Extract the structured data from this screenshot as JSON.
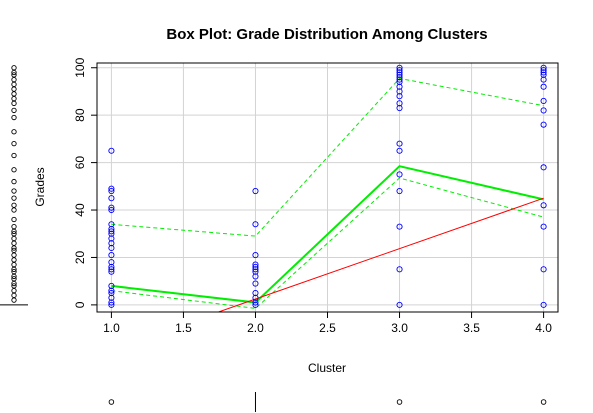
{
  "chart_data": {
    "type": "scatter",
    "title": "Box Plot: Grade Distribution Among Clusters",
    "xlabel": "Cluster",
    "ylabel": "Grades",
    "xlim": [
      0.9,
      4.1
    ],
    "ylim": [
      -3,
      102
    ],
    "x_ticks": [
      "1.0",
      "1.5",
      "2.0",
      "2.5",
      "3.0",
      "3.5",
      "4.0"
    ],
    "y_ticks": [
      "0",
      "20",
      "40",
      "60",
      "80",
      "100"
    ],
    "grid": true,
    "points": [
      {
        "x": 1,
        "ys": [
          65,
          49,
          48,
          45,
          41,
          40,
          34,
          32,
          31,
          30,
          28,
          26,
          24,
          21,
          18,
          16,
          15,
          14,
          8,
          6,
          5,
          3,
          1,
          0
        ]
      },
      {
        "x": 2,
        "ys": [
          48,
          34,
          21,
          17,
          16,
          15,
          14,
          12,
          9,
          5,
          3,
          1,
          0
        ]
      },
      {
        "x": 3,
        "ys": [
          100,
          99,
          98,
          97,
          96,
          95,
          94,
          92,
          90,
          88,
          85,
          83,
          68,
          65,
          55,
          48,
          33,
          15,
          0
        ]
      },
      {
        "x": 4,
        "ys": [
          100,
          99,
          98,
          97,
          95,
          92,
          86,
          82,
          76,
          58,
          42,
          33,
          15,
          0
        ]
      }
    ],
    "series": [
      {
        "style": "bold-green",
        "x": [
          1,
          2,
          3,
          4
        ],
        "values": [
          8,
          1,
          58.5,
          44.5
        ]
      },
      {
        "style": "dashed-green-upper",
        "x": [
          1,
          2,
          3,
          4
        ],
        "values": [
          34,
          29,
          95.5,
          84
        ]
      },
      {
        "style": "dashed-green-lower",
        "x": [
          1,
          2,
          3,
          4
        ],
        "values": [
          6,
          -1.5,
          53.5,
          37
        ]
      },
      {
        "style": "red",
        "x": [
          1.65,
          4
        ],
        "values": [
          -5,
          45
        ]
      }
    ],
    "left_rug_values": [
      100,
      98,
      97,
      95,
      93,
      91,
      89,
      87,
      85,
      82,
      79,
      73,
      68,
      63,
      57,
      52,
      48,
      45,
      42,
      40,
      36,
      33,
      31,
      30,
      28,
      26,
      24,
      23,
      21,
      19,
      17,
      15,
      14,
      12,
      11,
      9,
      8,
      6,
      4,
      2
    ],
    "bottom_marks": [
      {
        "x": 1,
        "kind": "circle"
      },
      {
        "x": 2,
        "kind": "line"
      },
      {
        "x": 3,
        "kind": "circle"
      },
      {
        "x": 4,
        "kind": "circle"
      }
    ],
    "colors": {
      "points": "#0000ff",
      "bold_line": "#00ee00",
      "dashed_line": "#00ee00",
      "red_line": "#ff0000",
      "grid": "#d3d3d3"
    }
  }
}
